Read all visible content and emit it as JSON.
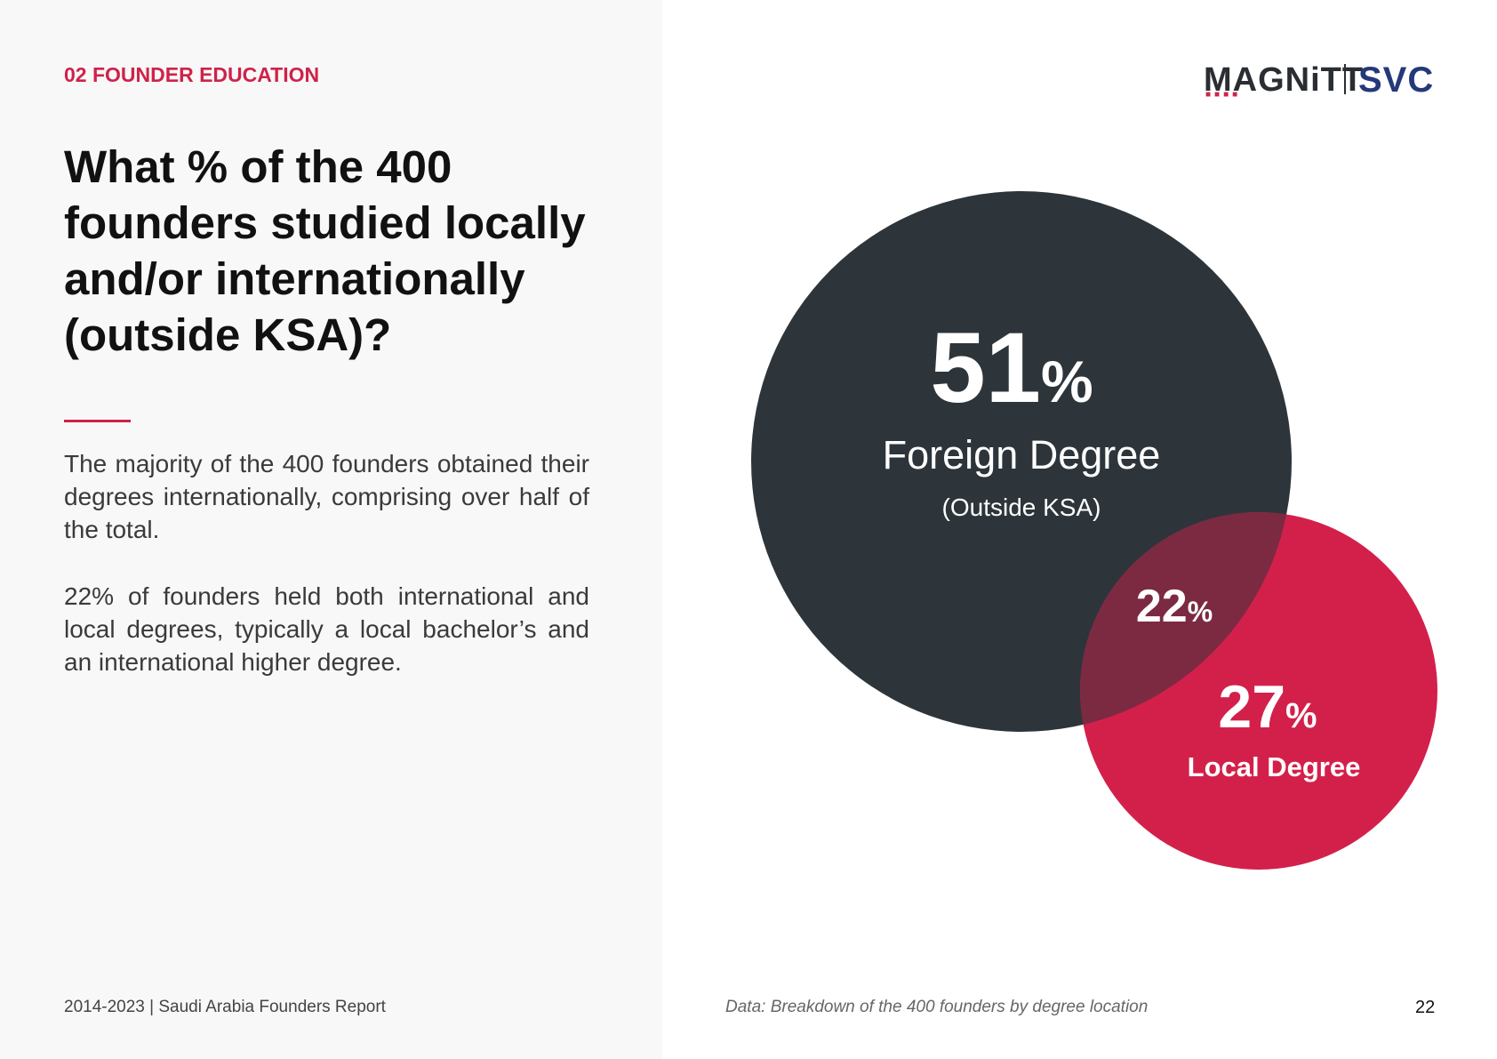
{
  "header": {
    "section_label": "02 FOUNDER EDUCATION",
    "logo_magnitt": "MAGNiTT",
    "logo_svc": "SVC"
  },
  "main": {
    "question": "What % of the 400 founders studied locally and/or internationally (outside KSA)?",
    "paragraphs": [
      "The majority of the 400 founders obtained their degrees internationally, comprising over half of the total.",
      "22% of founders held both international and local degrees, typically a local bachelor’s and an international higher degree."
    ]
  },
  "diagram": {
    "type": "venn",
    "foreign": {
      "value": "51",
      "unit": "%",
      "label": "Foreign Degree",
      "sublabel": "(Outside KSA)",
      "color": "#2d353a"
    },
    "overlap": {
      "value": "22",
      "unit": "%",
      "color": "#7b2a42"
    },
    "local": {
      "value": "27",
      "unit": "%",
      "label": "Local Degree",
      "color": "#d3204a"
    }
  },
  "footer": {
    "report": "2014-2023 | Saudi Arabia Founders Report",
    "data_note": "Data: Breakdown of the 400 founders by degree location",
    "page_number": "22"
  }
}
